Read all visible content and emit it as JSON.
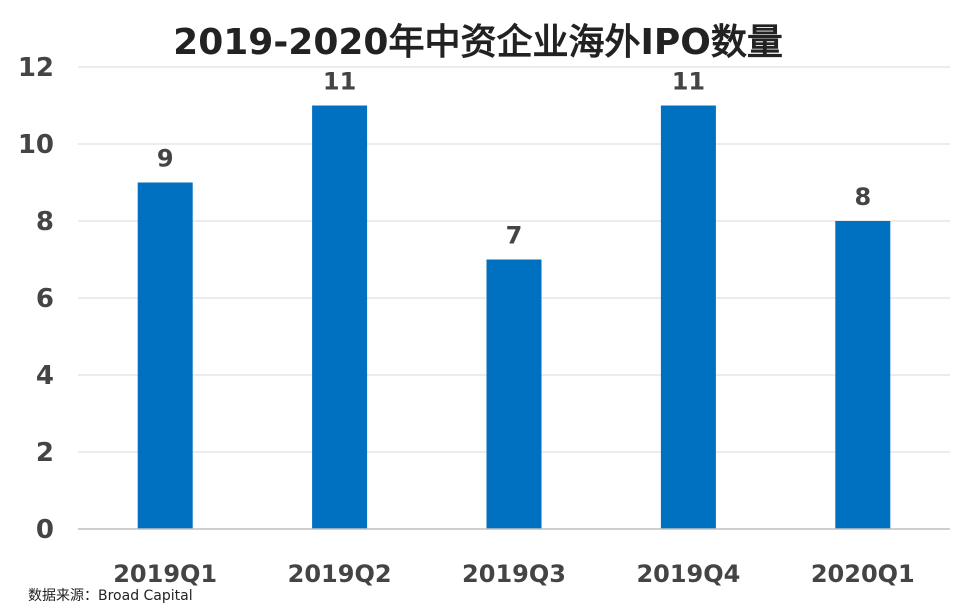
{
  "chart_data": {
    "type": "bar",
    "title": "2019-2020年中资企业海外IPO数量",
    "categories": [
      "2019Q1",
      "2019Q2",
      "2019Q3",
      "2019Q4",
      "2020Q1"
    ],
    "values": [
      9,
      11,
      7,
      11,
      8
    ],
    "ylim": [
      0,
      12
    ],
    "yticks": [
      0,
      2,
      4,
      6,
      8,
      10,
      12
    ],
    "xlabel": "",
    "ylabel": "",
    "grid": true,
    "bar_color": "#0070C0",
    "data_labels": [
      "9",
      "11",
      "7",
      "11",
      "8"
    ]
  },
  "source": "数据来源：Broad Capital"
}
